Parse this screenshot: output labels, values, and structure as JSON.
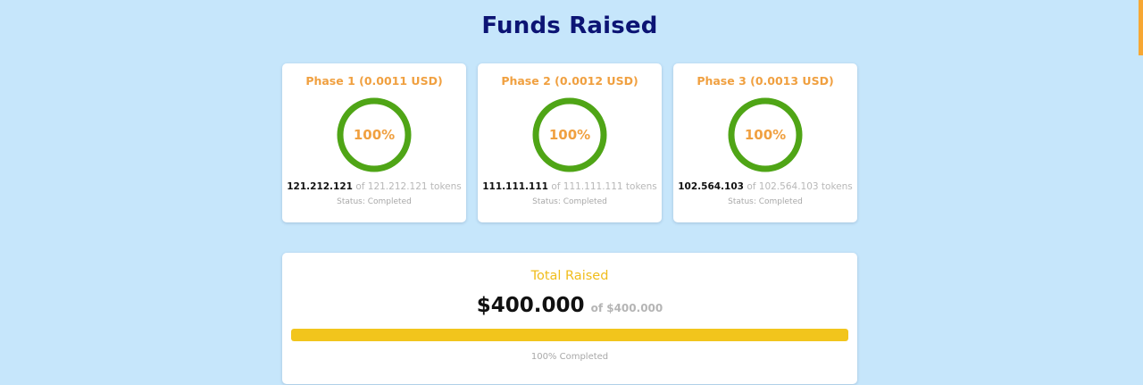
{
  "page": {
    "title": "Funds Raised"
  },
  "colors": {
    "background": "#c6e6fb",
    "title": "#0c1474",
    "accent_orange": "#f0a040",
    "ring_green": "#4fa516",
    "total_yellow": "#f2c51c"
  },
  "phases": [
    {
      "title": "Phase 1 (0.0011 USD)",
      "percent_label": "100%",
      "progress": 1.0,
      "sold": "121.212.121",
      "total_text": "of 121.212.121 tokens",
      "status": "Status: Completed"
    },
    {
      "title": "Phase 2 (0.0012 USD)",
      "percent_label": "100%",
      "progress": 1.0,
      "sold": "111.111.111",
      "total_text": "of 111.111.111 tokens",
      "status": "Status: Completed"
    },
    {
      "title": "Phase 3 (0.0013 USD)",
      "percent_label": "100%",
      "progress": 1.0,
      "sold": "102.564.103",
      "total_text": "of 102.564.103 tokens",
      "status": "Status: Completed"
    }
  ],
  "total": {
    "label": "Total Raised",
    "amount": "$400.000",
    "goal_text": "of $400.000",
    "progress": 1.0,
    "status": "100% Completed"
  }
}
